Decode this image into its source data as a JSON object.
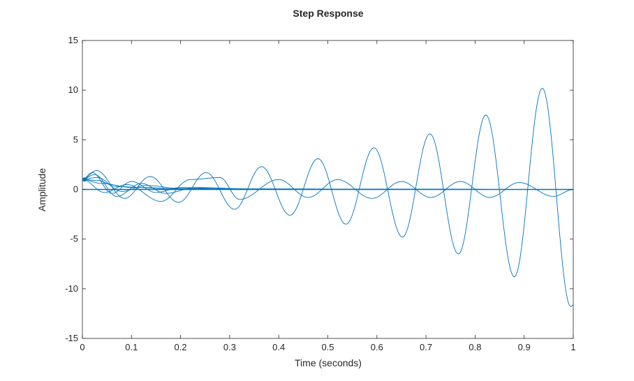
{
  "chart_data": {
    "type": "line",
    "title": "Step Response",
    "xlabel": "Time (seconds)",
    "ylabel": "Amplitude",
    "xlim": [
      0,
      1
    ],
    "ylim": [
      -15,
      15
    ],
    "xticks": [
      0,
      0.1,
      0.2,
      0.3,
      0.4,
      0.5,
      0.6,
      0.7,
      0.8,
      0.9,
      1
    ],
    "xtick_labels": [
      "0",
      "0.1",
      "0.2",
      "0.3",
      "0.4",
      "0.5",
      "0.6",
      "0.7",
      "0.8",
      "0.9",
      "1"
    ],
    "yticks": [
      15,
      10,
      5,
      0,
      -5,
      -10,
      -15
    ],
    "ytick_labels": [
      "15",
      "10",
      "5",
      "0",
      "-5",
      "-10",
      "-15"
    ],
    "grid": false,
    "line_color": "#0072bd",
    "series": [
      {
        "x": [
          0,
          0.0573,
          0.1146,
          0.1719,
          0.2292,
          0.2865,
          0.3438,
          0.4011,
          0.4584,
          0.5157,
          0.573,
          0.6303,
          0.6876,
          0.7449,
          0.8022,
          0.8595,
          0.9168,
          0.9741,
          1.0
        ],
        "y": [
          1.0,
          -1.0,
          1.2,
          -1.3,
          1.6,
          -1.6,
          2.3,
          -2.6,
          3.1,
          -3.5,
          4.2,
          -4.8,
          5.6,
          -6.5,
          7.5,
          -8.8,
          10.2,
          -11.8,
          -0.1
        ],
        "peaks": [
          [
            0,
            1.0
          ],
          [
            0.0286,
            1.9
          ],
          [
            0.0859,
            -0.9
          ],
          [
            0.138,
            1.3
          ],
          [
            0.196,
            -1.3
          ],
          [
            0.252,
            1.7
          ],
          [
            0.31,
            -2.0
          ],
          [
            0.365,
            2.3
          ],
          [
            0.423,
            -2.6
          ],
          [
            0.48,
            3.1
          ],
          [
            0.537,
            -3.5
          ],
          [
            0.594,
            4.2
          ],
          [
            0.652,
            -4.8
          ],
          [
            0.708,
            5.6
          ],
          [
            0.766,
            -6.5
          ],
          [
            0.822,
            7.5
          ],
          [
            0.88,
            -8.8
          ],
          [
            0.937,
            10.2
          ],
          [
            0.995,
            -11.8
          ],
          [
            1.0,
            -11.6
          ]
        ]
      },
      {
        "peaks": [
          [
            0,
            1.0
          ],
          [
            0.045,
            -0.3
          ],
          [
            0.09,
            0.5
          ],
          [
            0.16,
            -1.2
          ],
          [
            0.22,
            1.0
          ],
          [
            0.28,
            1.2
          ],
          [
            0.32,
            -1.0
          ],
          [
            0.4,
            1.0
          ],
          [
            0.46,
            -0.8
          ],
          [
            0.52,
            1.0
          ],
          [
            0.59,
            -0.9
          ],
          [
            0.65,
            0.8
          ],
          [
            0.71,
            -0.8
          ],
          [
            0.77,
            0.8
          ],
          [
            0.83,
            -0.8
          ],
          [
            0.89,
            0.7
          ],
          [
            0.96,
            -0.7
          ],
          [
            1.0,
            0.0
          ]
        ]
      },
      {
        "decay": [
          [
            0,
            1.0
          ],
          [
            0.02,
            1.7
          ],
          [
            0.06,
            -0.4
          ],
          [
            0.1,
            0.8
          ],
          [
            0.15,
            -0.3
          ],
          [
            0.2,
            0.2
          ],
          [
            0.3,
            0.05
          ],
          [
            1.0,
            0.0
          ]
        ]
      },
      {
        "decay": [
          [
            0,
            1.0
          ],
          [
            0.025,
            1.5
          ],
          [
            0.07,
            -0.7
          ],
          [
            0.12,
            0.6
          ],
          [
            0.17,
            -0.4
          ],
          [
            0.23,
            0.2
          ],
          [
            0.35,
            0.05
          ],
          [
            1.0,
            0.0
          ]
        ]
      },
      {
        "decay": [
          [
            0,
            1.0
          ],
          [
            0.03,
            1.2
          ],
          [
            0.08,
            -0.2
          ],
          [
            0.13,
            0.4
          ],
          [
            0.2,
            0.1
          ],
          [
            0.3,
            0.05
          ],
          [
            1.0,
            0.0
          ]
        ]
      },
      {
        "decay": [
          [
            0,
            1.0
          ],
          [
            0.03,
            0.9
          ],
          [
            0.07,
            0.3
          ],
          [
            0.12,
            0.2
          ],
          [
            0.2,
            0.05
          ],
          [
            1.0,
            0.0
          ]
        ]
      },
      {
        "decay": [
          [
            0,
            1.0
          ],
          [
            0.04,
            0.6
          ],
          [
            0.1,
            0.2
          ],
          [
            0.2,
            0.05
          ],
          [
            1.0,
            0.0
          ]
        ]
      }
    ]
  }
}
